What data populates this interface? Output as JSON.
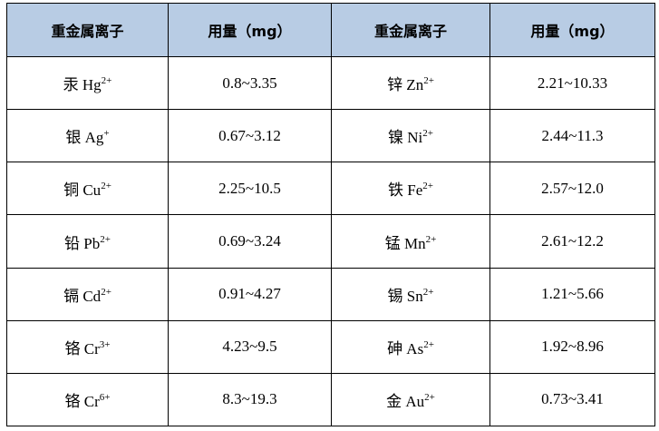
{
  "table": {
    "header": [
      "重金属离子",
      "用量（mg）",
      "重金属离子",
      "用量（mg）"
    ],
    "rows": [
      [
        {
          "ion": "汞 Hg",
          "charge": "2+"
        },
        "0.8~3.35",
        {
          "ion": "锌 Zn",
          "charge": "2+"
        },
        "2.21~10.33"
      ],
      [
        {
          "ion": "银 Ag",
          "charge": "+"
        },
        "0.67~3.12",
        {
          "ion": "镍 Ni",
          "charge": "2+"
        },
        "2.44~11.3"
      ],
      [
        {
          "ion": "铜 Cu",
          "charge": "2+"
        },
        "2.25~10.5",
        {
          "ion": "铁 Fe",
          "charge": "2+"
        },
        "2.57~12.0"
      ],
      [
        {
          "ion": "铅 Pb",
          "charge": "2+"
        },
        "0.69~3.24",
        {
          "ion": "锰 Mn",
          "charge": "2+"
        },
        "2.61~12.2"
      ],
      [
        {
          "ion": "镉 Cd",
          "charge": "2+"
        },
        "0.91~4.27",
        {
          "ion": "锡 Sn",
          "charge": "2+"
        },
        "1.21~5.66"
      ],
      [
        {
          "ion": "铬 Cr",
          "charge": "3+"
        },
        "4.23~9.5",
        {
          "ion": "砷 As",
          "charge": "2+"
        },
        "1.92~8.96"
      ],
      [
        {
          "ion": "铬 Cr",
          "charge": "6+"
        },
        "8.3~19.3",
        {
          "ion": "金 Au",
          "charge": "2+"
        },
        "0.73~3.41"
      ]
    ]
  }
}
